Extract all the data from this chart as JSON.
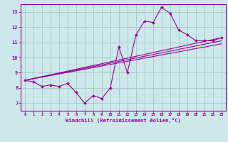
{
  "xlabel": "Windchill (Refroidissement éolien,°C)",
  "bg_color": "#cce8e8",
  "grid_color": "#aacccc",
  "line_color": "#990099",
  "x_data": [
    0,
    1,
    2,
    3,
    4,
    5,
    6,
    7,
    8,
    9,
    10,
    11,
    12,
    13,
    14,
    15,
    16,
    17,
    18,
    19,
    20,
    21,
    22,
    23
  ],
  "y_data": [
    8.5,
    8.4,
    8.1,
    8.2,
    8.1,
    8.3,
    7.7,
    7.0,
    7.5,
    7.3,
    8.0,
    10.7,
    9.0,
    11.5,
    12.4,
    12.3,
    13.3,
    12.9,
    11.8,
    11.5,
    11.1,
    11.1,
    11.1,
    11.3
  ],
  "trend1_x": [
    0,
    23
  ],
  "trend1_y": [
    8.5,
    11.3
  ],
  "trend2_x": [
    0,
    23
  ],
  "trend2_y": [
    8.5,
    10.9
  ],
  "trend3_x": [
    0,
    23
  ],
  "trend3_y": [
    8.5,
    11.1
  ],
  "ylim": [
    6.5,
    13.5
  ],
  "xlim": [
    -0.5,
    23.5
  ],
  "yticks": [
    7,
    8,
    9,
    10,
    11,
    12,
    13
  ],
  "xticks": [
    0,
    1,
    2,
    3,
    4,
    5,
    6,
    7,
    8,
    9,
    10,
    11,
    12,
    13,
    14,
    15,
    16,
    17,
    18,
    19,
    20,
    21,
    22,
    23
  ]
}
